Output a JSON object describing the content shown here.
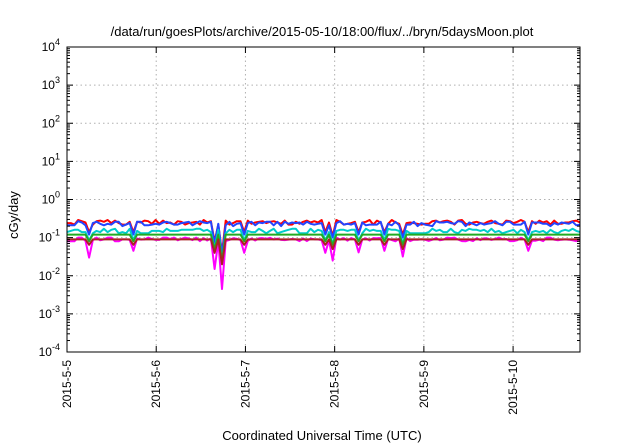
{
  "chart_data": {
    "type": "line",
    "title": "/data/run/goesPlots/archive/2015-05-10/18:00/flux/../bryn/5daysMoon.plot",
    "xlabel": "Coordinated Universal Time (UTC)",
    "ylabel": "cGy/day",
    "yscale": "log",
    "ylim": [
      0.0001,
      10000
    ],
    "xlim": [
      "2015-05-05",
      "2015-05-10 18:00"
    ],
    "grid": true,
    "x_ticks": [
      "2015-5-5",
      "2015-5-6",
      "2015-5-7",
      "2015-5-8",
      "2015-5-9",
      "2015-5-10"
    ],
    "y_ticks": [
      {
        "base": "10",
        "exp": "-4"
      },
      {
        "base": "10",
        "exp": "-3"
      },
      {
        "base": "10",
        "exp": "-2"
      },
      {
        "base": "10",
        "exp": "-1"
      },
      {
        "base": "10",
        "exp": "0"
      },
      {
        "base": "10",
        "exp": "1"
      },
      {
        "base": "10",
        "exp": "2"
      },
      {
        "base": "10",
        "exp": "3"
      },
      {
        "base": "10",
        "exp": "4"
      }
    ],
    "series": [
      {
        "color": "#ff00ff",
        "values": [
          0.08,
          0.08,
          0.08,
          0.1,
          0.1,
          0.082,
          0.03,
          0.085,
          0.1,
          0.085,
          0.09,
          0.1,
          0.1,
          0.08,
          0.08,
          0.09,
          0.09,
          0.087,
          0.045,
          0.095,
          0.089,
          0.09,
          0.1,
          0.092,
          0.087,
          0.087,
          0.1,
          0.1,
          0.091,
          0.1,
          0.085,
          0.093,
          0.1,
          0.095,
          0.086,
          0.1,
          0.081,
          0.097,
          0.084,
          0.096,
          0.015,
          0.08,
          0.0045,
          0.081,
          0.087,
          0.096,
          0.093,
          0.086,
          0.04,
          0.082,
          0.095,
          0.084,
          0.096,
          0.097,
          0.093,
          0.099,
          0.09,
          0.094,
          0.087,
          0.086,
          0.089,
          0.092,
          0.09,
          0.081,
          0.095,
          0.081,
          0.094,
          0.091,
          0.09,
          0.085,
          0.04,
          0.085,
          0.025,
          0.1,
          0.089,
          0.097,
          0.083,
          0.097,
          0.09,
          0.041,
          0.09,
          0.096,
          0.084,
          0.097,
          0.096,
          0.098,
          0.045,
          0.093,
          0.086,
          0.08,
          0.094,
          0.032,
          0.098,
          0.081,
          0.089,
          0.088,
          0.091,
          0.088,
          0.082,
          0.088,
          0.098,
          0.085,
          0.089,
          0.1,
          0.097,
          0.1,
          0.089,
          0.081,
          0.08,
          0.087,
          0.081,
          0.096,
          0.086,
          0.096,
          0.095,
          0.087,
          0.092,
          0.1,
          0.091,
          0.092,
          0.081,
          0.081,
          0.086,
          0.099,
          0.089,
          0.045,
          0.083,
          0.083,
          0.088,
          0.081,
          0.1,
          0.1,
          0.089,
          0.085,
          0.088,
          0.09,
          0.088,
          0.085,
          0.081,
          0.087
        ]
      },
      {
        "color": "#ff0000",
        "values": [
          0.24,
          0.24,
          0.22,
          0.29,
          0.27,
          0.25,
          0.14,
          0.22,
          0.27,
          0.28,
          0.26,
          0.29,
          0.24,
          0.28,
          0.24,
          0.22,
          0.22,
          0.26,
          0.14,
          0.26,
          0.25,
          0.28,
          0.27,
          0.23,
          0.29,
          0.23,
          0.28,
          0.24,
          0.25,
          0.22,
          0.27,
          0.26,
          0.22,
          0.24,
          0.25,
          0.26,
          0.22,
          0.29,
          0.25,
          0.27,
          0.08,
          0.22,
          0.04,
          0.28,
          0.22,
          0.24,
          0.27,
          0.27,
          0.14,
          0.28,
          0.23,
          0.25,
          0.26,
          0.27,
          0.24,
          0.26,
          0.27,
          0.25,
          0.23,
          0.28,
          0.22,
          0.22,
          0.26,
          0.23,
          0.26,
          0.28,
          0.25,
          0.27,
          0.25,
          0.29,
          0.14,
          0.25,
          0.11,
          0.29,
          0.26,
          0.22,
          0.23,
          0.24,
          0.26,
          0.14,
          0.25,
          0.26,
          0.29,
          0.22,
          0.28,
          0.25,
          0.14,
          0.23,
          0.29,
          0.25,
          0.23,
          0.12,
          0.24,
          0.25,
          0.24,
          0.23,
          0.22,
          0.23,
          0.23,
          0.27,
          0.28,
          0.25,
          0.27,
          0.28,
          0.26,
          0.22,
          0.28,
          0.29,
          0.23,
          0.22,
          0.25,
          0.26,
          0.24,
          0.23,
          0.26,
          0.28,
          0.24,
          0.23,
          0.22,
          0.28,
          0.27,
          0.24,
          0.26,
          0.29,
          0.26,
          0.14,
          0.27,
          0.23,
          0.28,
          0.25,
          0.27,
          0.22,
          0.28,
          0.23,
          0.23,
          0.25,
          0.25,
          0.27,
          0.28,
          0.25
        ]
      },
      {
        "color": "#2244ff",
        "values": [
          0.21,
          0.21,
          0.21,
          0.27,
          0.25,
          0.21,
          0.12,
          0.24,
          0.26,
          0.23,
          0.21,
          0.23,
          0.22,
          0.26,
          0.26,
          0.2,
          0.22,
          0.24,
          0.12,
          0.26,
          0.26,
          0.21,
          0.21,
          0.22,
          0.23,
          0.22,
          0.25,
          0.26,
          0.24,
          0.22,
          0.22,
          0.24,
          0.25,
          0.26,
          0.21,
          0.24,
          0.27,
          0.25,
          0.24,
          0.26,
          0.07,
          0.23,
          0.035,
          0.21,
          0.26,
          0.2,
          0.23,
          0.24,
          0.12,
          0.24,
          0.26,
          0.21,
          0.25,
          0.24,
          0.26,
          0.26,
          0.21,
          0.26,
          0.2,
          0.26,
          0.23,
          0.25,
          0.24,
          0.25,
          0.22,
          0.26,
          0.23,
          0.22,
          0.23,
          0.24,
          0.12,
          0.21,
          0.1,
          0.24,
          0.27,
          0.22,
          0.23,
          0.22,
          0.24,
          0.12,
          0.25,
          0.21,
          0.22,
          0.22,
          0.22,
          0.26,
          0.12,
          0.23,
          0.21,
          0.26,
          0.21,
          0.1,
          0.22,
          0.22,
          0.26,
          0.2,
          0.24,
          0.22,
          0.21,
          0.2,
          0.27,
          0.25,
          0.25,
          0.26,
          0.24,
          0.23,
          0.27,
          0.26,
          0.2,
          0.25,
          0.23,
          0.21,
          0.24,
          0.22,
          0.23,
          0.24,
          0.27,
          0.23,
          0.21,
          0.26,
          0.26,
          0.22,
          0.22,
          0.22,
          0.26,
          0.12,
          0.25,
          0.25,
          0.25,
          0.23,
          0.23,
          0.2,
          0.24,
          0.22,
          0.25,
          0.24,
          0.23,
          0.26,
          0.21,
          0.22
        ]
      },
      {
        "color": "#00cccc",
        "values": [
          0.14,
          0.15,
          0.16,
          0.16,
          0.14,
          0.14,
          0.085,
          0.13,
          0.15,
          0.14,
          0.17,
          0.14,
          0.16,
          0.17,
          0.13,
          0.14,
          0.13,
          0.17,
          0.085,
          0.15,
          0.13,
          0.13,
          0.13,
          0.15,
          0.15,
          0.15,
          0.14,
          0.17,
          0.15,
          0.15,
          0.15,
          0.16,
          0.16,
          0.16,
          0.16,
          0.17,
          0.17,
          0.15,
          0.16,
          0.14,
          0.05,
          0.16,
          0.025,
          0.13,
          0.16,
          0.14,
          0.16,
          0.16,
          0.085,
          0.15,
          0.14,
          0.14,
          0.17,
          0.15,
          0.13,
          0.15,
          0.17,
          0.13,
          0.14,
          0.15,
          0.16,
          0.17,
          0.17,
          0.13,
          0.13,
          0.13,
          0.17,
          0.14,
          0.16,
          0.15,
          0.085,
          0.14,
          0.07,
          0.15,
          0.16,
          0.16,
          0.15,
          0.16,
          0.16,
          0.085,
          0.13,
          0.17,
          0.15,
          0.16,
          0.15,
          0.15,
          0.085,
          0.17,
          0.16,
          0.16,
          0.15,
          0.07,
          0.15,
          0.13,
          0.13,
          0.13,
          0.13,
          0.13,
          0.14,
          0.17,
          0.15,
          0.16,
          0.14,
          0.14,
          0.17,
          0.14,
          0.13,
          0.16,
          0.15,
          0.17,
          0.16,
          0.16,
          0.15,
          0.16,
          0.14,
          0.17,
          0.14,
          0.15,
          0.13,
          0.14,
          0.15,
          0.16,
          0.13,
          0.16,
          0.14,
          0.085,
          0.14,
          0.15,
          0.14,
          0.15,
          0.13,
          0.16,
          0.14,
          0.13,
          0.15,
          0.16,
          0.15,
          0.17,
          0.15,
          0.14
        ]
      },
      {
        "color": "#22aa22",
        "values": [
          0.12,
          0.12,
          0.12,
          0.12,
          0.12,
          0.12,
          0.08,
          0.12,
          0.12,
          0.12,
          0.12,
          0.12,
          0.12,
          0.12,
          0.12,
          0.12,
          0.12,
          0.12,
          0.08,
          0.12,
          0.12,
          0.12,
          0.12,
          0.12,
          0.12,
          0.12,
          0.12,
          0.12,
          0.12,
          0.12,
          0.12,
          0.12,
          0.12,
          0.12,
          0.12,
          0.12,
          0.12,
          0.12,
          0.12,
          0.12,
          0.05,
          0.12,
          0.025,
          0.12,
          0.12,
          0.12,
          0.12,
          0.12,
          0.08,
          0.12,
          0.12,
          0.12,
          0.12,
          0.12,
          0.12,
          0.12,
          0.12,
          0.12,
          0.12,
          0.12,
          0.12,
          0.12,
          0.12,
          0.12,
          0.12,
          0.12,
          0.12,
          0.12,
          0.12,
          0.12,
          0.08,
          0.12,
          0.065,
          0.12,
          0.12,
          0.12,
          0.12,
          0.12,
          0.12,
          0.08,
          0.12,
          0.12,
          0.12,
          0.12,
          0.12,
          0.12,
          0.08,
          0.12,
          0.12,
          0.12,
          0.12,
          0.065,
          0.12,
          0.12,
          0.12,
          0.12,
          0.12,
          0.12,
          0.12,
          0.12,
          0.12,
          0.12,
          0.12,
          0.12,
          0.12,
          0.12,
          0.12,
          0.12,
          0.12,
          0.12,
          0.12,
          0.12,
          0.12,
          0.12,
          0.12,
          0.12,
          0.12,
          0.12,
          0.12,
          0.12,
          0.12,
          0.12,
          0.12,
          0.12,
          0.12,
          0.08,
          0.12,
          0.12,
          0.12,
          0.12,
          0.12,
          0.12,
          0.12,
          0.12,
          0.12,
          0.12,
          0.12,
          0.12,
          0.12,
          0.12
        ]
      },
      {
        "color": "#aa2222",
        "values": [
          0.09,
          0.09,
          0.09,
          0.09,
          0.09,
          0.09,
          0.065,
          0.09,
          0.09,
          0.09,
          0.09,
          0.09,
          0.09,
          0.09,
          0.09,
          0.09,
          0.09,
          0.09,
          0.065,
          0.09,
          0.09,
          0.09,
          0.09,
          0.09,
          0.09,
          0.09,
          0.09,
          0.09,
          0.09,
          0.09,
          0.09,
          0.09,
          0.09,
          0.09,
          0.09,
          0.09,
          0.09,
          0.09,
          0.09,
          0.09,
          0.04,
          0.09,
          0.02,
          0.09,
          0.09,
          0.09,
          0.09,
          0.09,
          0.065,
          0.09,
          0.09,
          0.09,
          0.09,
          0.09,
          0.09,
          0.09,
          0.09,
          0.09,
          0.09,
          0.09,
          0.09,
          0.09,
          0.09,
          0.09,
          0.09,
          0.09,
          0.09,
          0.09,
          0.09,
          0.09,
          0.065,
          0.09,
          0.05,
          0.09,
          0.09,
          0.09,
          0.09,
          0.09,
          0.09,
          0.065,
          0.09,
          0.09,
          0.09,
          0.09,
          0.09,
          0.09,
          0.065,
          0.09,
          0.09,
          0.09,
          0.09,
          0.05,
          0.09,
          0.09,
          0.09,
          0.09,
          0.09,
          0.09,
          0.09,
          0.09,
          0.09,
          0.09,
          0.09,
          0.09,
          0.09,
          0.09,
          0.09,
          0.09,
          0.09,
          0.09,
          0.09,
          0.09,
          0.09,
          0.09,
          0.09,
          0.09,
          0.09,
          0.09,
          0.09,
          0.09,
          0.09,
          0.09,
          0.09,
          0.09,
          0.09,
          0.065,
          0.09,
          0.09,
          0.09,
          0.09,
          0.09,
          0.09,
          0.09,
          0.09,
          0.09,
          0.09,
          0.09,
          0.09,
          0.09,
          0.09
        ]
      }
    ]
  }
}
